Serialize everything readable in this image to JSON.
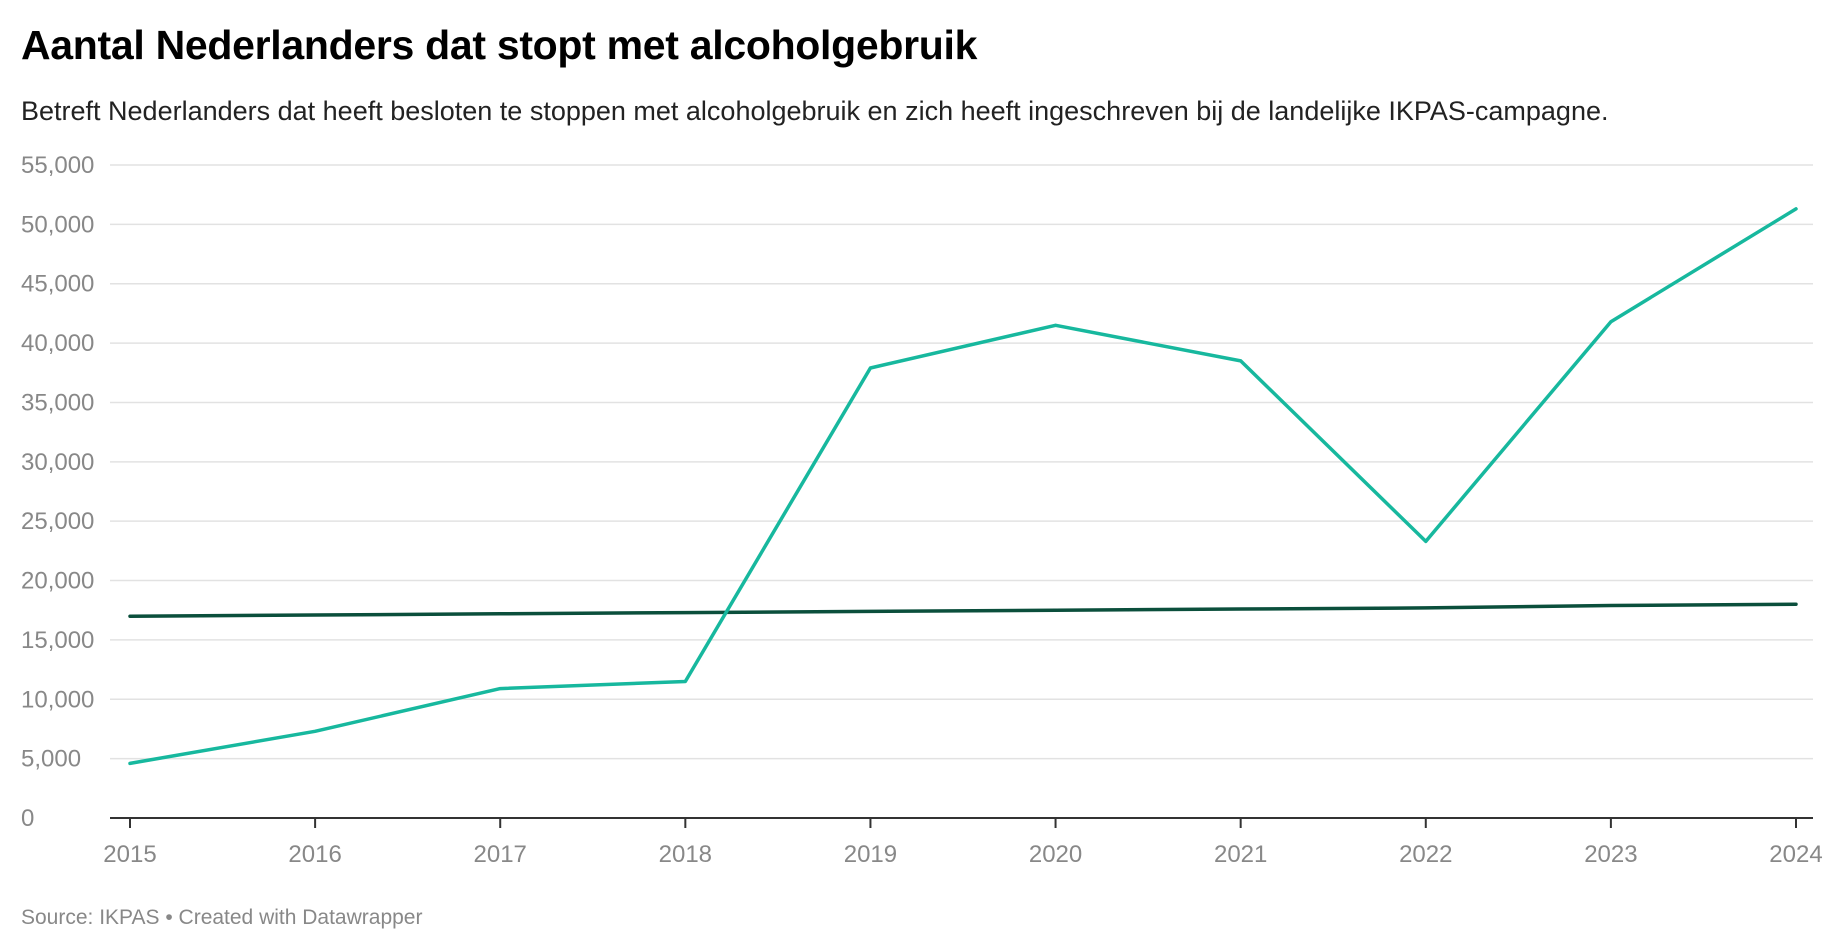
{
  "chart_data": {
    "type": "line",
    "title": "Aantal Nederlanders dat stopt met alcoholgebruik",
    "subtitle": "Betreft Nederlanders dat heeft besloten te stoppen met alcoholgebruik en zich heeft ingeschreven bij de landelijke IKPAS-campagne.",
    "xlabel": "",
    "ylabel": "",
    "x": [
      2015,
      2016,
      2017,
      2018,
      2019,
      2020,
      2021,
      2022,
      2023,
      2024
    ],
    "x_tick_labels": [
      "2015",
      "2016",
      "2017",
      "2018",
      "2019",
      "2020",
      "2021",
      "2022",
      "2023",
      "2024"
    ],
    "ylim": [
      0,
      55000
    ],
    "y_ticks": [
      0,
      5000,
      10000,
      15000,
      20000,
      25000,
      30000,
      35000,
      40000,
      45000,
      50000,
      55000
    ],
    "y_tick_labels": [
      "0",
      "5,000",
      "10,000",
      "15,000",
      "20,000",
      "25,000",
      "30,000",
      "35,000",
      "40,000",
      "45,000",
      "50,000",
      "55,000"
    ],
    "grid": true,
    "legend": "none",
    "series": [
      {
        "color": "#17b89e",
        "values": [
          4600,
          7300,
          10900,
          11500,
          37900,
          41500,
          38500,
          23300,
          41800,
          51300
        ]
      },
      {
        "color": "#0b4f3c",
        "values": [
          17000,
          17100,
          17200,
          17300,
          17400,
          17500,
          17600,
          17700,
          17900,
          18000
        ]
      }
    ]
  },
  "footer": {
    "source_text": "Source: IKPAS • Created with Datawrapper"
  },
  "colors": {
    "gridline": "#e2e2e2",
    "axis": "#333333",
    "tick_text": "#888888"
  }
}
